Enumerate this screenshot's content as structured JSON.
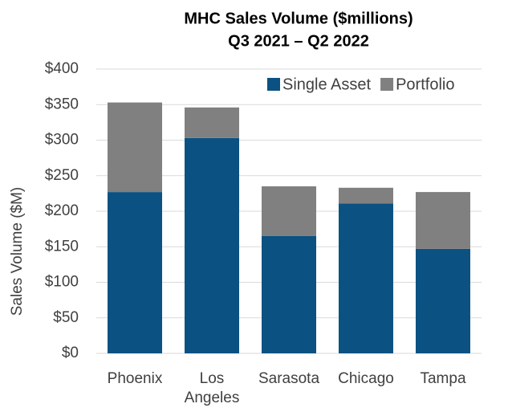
{
  "chart_data": {
    "type": "bar",
    "stacked": true,
    "title": "MHC Sales Volume ($millions)",
    "subtitle": "Q3 2021 – Q2 2022",
    "y_label": "Sales Volume ($M)",
    "categories": [
      "Phoenix",
      "Los Angeles",
      "Sarasota",
      "Chicago",
      "Tampa"
    ],
    "series": [
      {
        "name": "Single Asset",
        "color": "#0b5282",
        "values": [
          227,
          303,
          165,
          211,
          147
        ]
      },
      {
        "name": "Portfolio",
        "color": "#808080",
        "values": [
          126,
          43,
          70,
          22,
          80
        ]
      }
    ],
    "ylim": [
      0,
      400
    ],
    "yticks": [
      {
        "value": 0,
        "label": "$0"
      },
      {
        "value": 50,
        "label": "$50"
      },
      {
        "value": 100,
        "label": "$100"
      },
      {
        "value": 150,
        "label": "$150"
      },
      {
        "value": 200,
        "label": "$200"
      },
      {
        "value": 250,
        "label": "$250"
      },
      {
        "value": 300,
        "label": "$300"
      },
      {
        "value": 350,
        "label": "$350"
      },
      {
        "value": 400,
        "label": "$400"
      }
    ],
    "grid": true,
    "legend": "top-right"
  }
}
